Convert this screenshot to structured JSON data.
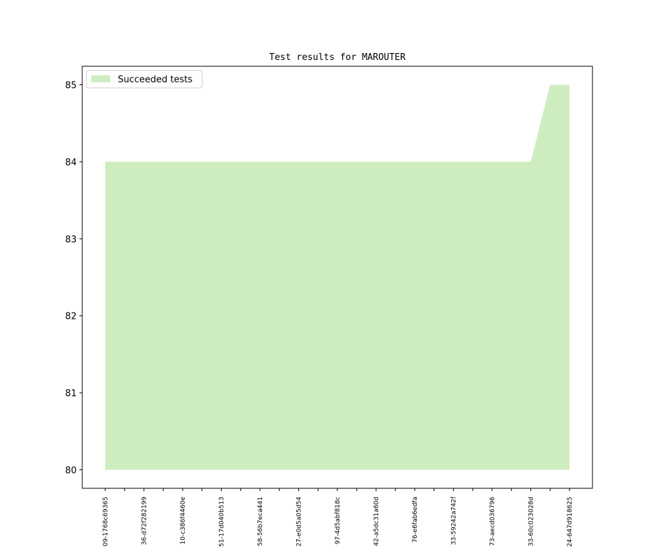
{
  "chart_data": {
    "type": "area",
    "title": "Test results for MAROUTER",
    "categories": [
      "09-1768c69365",
      null,
      "36-d72f282199",
      null,
      "10-c386f4460e",
      null,
      "51-17d040b513",
      null,
      "58-56b7eca441",
      null,
      "27-e0d5a05d54",
      null,
      "97-4d5abf818c",
      null,
      "42-a5dc31a60d",
      null,
      "76-e6fab6edfa",
      null,
      "33-59242a742f",
      null,
      "73-aecd036796",
      null,
      "33-60c023028d",
      null,
      "24-647d918625"
    ],
    "baseline": 80,
    "series": [
      {
        "name": "Succeeded tests",
        "color": "#ceedbf",
        "values": [
          84,
          84,
          84,
          84,
          84,
          84,
          84,
          84,
          84,
          84,
          84,
          84,
          84,
          84,
          84,
          84,
          84,
          84,
          84,
          84,
          84,
          84,
          84,
          85,
          85
        ]
      }
    ],
    "ylim": [
      79.76,
      85.24
    ],
    "yticks": [
      80,
      81,
      82,
      83,
      84,
      85
    ],
    "legend": "upper left"
  }
}
